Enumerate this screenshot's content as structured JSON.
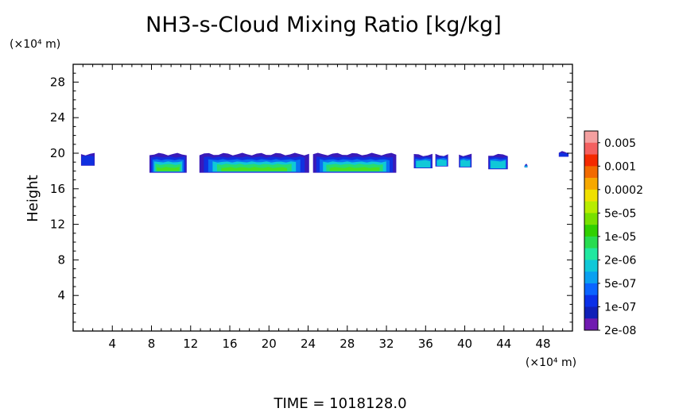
{
  "chart_data": {
    "type": "heatmap",
    "title": "NH3-s-Cloud Mixing Ratio [kg/kg]",
    "ylabel": "Height",
    "y_unit": "(×10⁴ m)",
    "x_unit": "(×10⁴ m)",
    "xlim": [
      0,
      51
    ],
    "ylim": [
      0,
      30
    ],
    "x_ticks": [
      4,
      8,
      12,
      16,
      20,
      24,
      28,
      32,
      36,
      40,
      44,
      48
    ],
    "y_ticks": [
      4,
      8,
      12,
      16,
      20,
      24,
      28
    ],
    "footer": "TIME = 1018128.0",
    "colorbar": {
      "labels": [
        "0.005",
        "0.001",
        "0.0002",
        "5e-05",
        "1e-05",
        "2e-06",
        "5e-07",
        "1e-07",
        "2e-08"
      ],
      "colors": [
        "#f4a0a0",
        "#f46060",
        "#f42a00",
        "#f26a00",
        "#f6a800",
        "#f0e000",
        "#b8ec00",
        "#78e000",
        "#30d000",
        "#28dc50",
        "#20e8a0",
        "#10c8d8",
        "#0aa0f0",
        "#0a64ff",
        "#0a30e8",
        "#1020b8",
        "#701ab0"
      ]
    },
    "cloud_segments": [
      {
        "x0": 0.8,
        "x1": 2.2,
        "ytop": 19.9,
        "ybot": 18.6,
        "core": 0
      },
      {
        "x0": 7.8,
        "x1": 11.6,
        "ytop": 19.9,
        "ybot": 17.8,
        "core": 1
      },
      {
        "x0": 12.9,
        "x1": 24.1,
        "ytop": 19.9,
        "ybot": 17.8,
        "core": 1
      },
      {
        "x0": 24.5,
        "x1": 33.0,
        "ytop": 19.9,
        "ybot": 17.8,
        "core": 1
      },
      {
        "x0": 34.8,
        "x1": 36.7,
        "ytop": 19.8,
        "ybot": 18.3,
        "core": 0.5
      },
      {
        "x0": 37.0,
        "x1": 38.3,
        "ytop": 19.8,
        "ybot": 18.5,
        "core": 0.4
      },
      {
        "x0": 39.4,
        "x1": 40.7,
        "ytop": 19.8,
        "ybot": 18.4,
        "core": 0.4
      },
      {
        "x0": 42.4,
        "x1": 44.4,
        "ytop": 19.8,
        "ybot": 18.2,
        "core": 0.7
      },
      {
        "x0": 46.1,
        "x1": 46.4,
        "ytop": 18.7,
        "ybot": 18.4,
        "core": 0.3
      },
      {
        "x0": 49.6,
        "x1": 50.6,
        "ytop": 20.1,
        "ybot": 19.6,
        "core": 0
      }
    ]
  }
}
